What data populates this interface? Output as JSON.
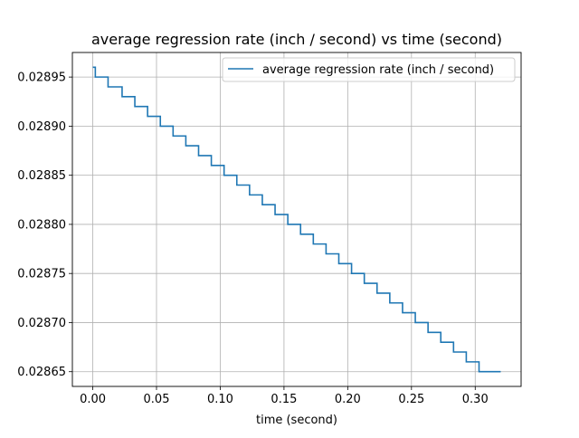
{
  "chart_data": {
    "type": "line",
    "title": "average regression rate (inch / second) vs time (second)",
    "xlabel": "time (second)",
    "ylabel": "",
    "xlim": [
      -0.016,
      0.336
    ],
    "ylim": [
      0.028635,
      0.028975
    ],
    "x_ticks": [
      0.0,
      0.05,
      0.1,
      0.15,
      0.2,
      0.25,
      0.3
    ],
    "x_tick_labels": [
      "0.00",
      "0.05",
      "0.10",
      "0.15",
      "0.20",
      "0.25",
      "0.30"
    ],
    "y_ticks": [
      0.02865,
      0.0287,
      0.02875,
      0.0288,
      0.02885,
      0.0289,
      0.02895
    ],
    "y_tick_labels": [
      "0.02865",
      "0.02870",
      "0.02875",
      "0.02880",
      "0.02885",
      "0.02890",
      "0.02895"
    ],
    "grid": true,
    "legend_position": "upper-right",
    "series": [
      {
        "name": "average regression rate (inch / second)",
        "color": "#1f77b4",
        "step": true,
        "x": [
          0.0,
          0.002,
          0.012,
          0.023,
          0.033,
          0.043,
          0.053,
          0.063,
          0.073,
          0.083,
          0.093,
          0.103,
          0.113,
          0.123,
          0.133,
          0.143,
          0.153,
          0.163,
          0.173,
          0.183,
          0.193,
          0.203,
          0.213,
          0.223,
          0.233,
          0.243,
          0.253,
          0.263,
          0.273,
          0.283,
          0.293,
          0.303,
          0.313,
          0.32
        ],
        "y": [
          0.02896,
          0.02895,
          0.02894,
          0.02893,
          0.02892,
          0.02891,
          0.0289,
          0.02889,
          0.02888,
          0.02887,
          0.02886,
          0.02885,
          0.02884,
          0.02883,
          0.02882,
          0.02881,
          0.0288,
          0.02879,
          0.02878,
          0.02877,
          0.02876,
          0.02875,
          0.02874,
          0.02873,
          0.02872,
          0.02871,
          0.0287,
          0.02869,
          0.02868,
          0.02867,
          0.02866,
          0.02865,
          0.02865,
          0.02865
        ]
      }
    ]
  }
}
